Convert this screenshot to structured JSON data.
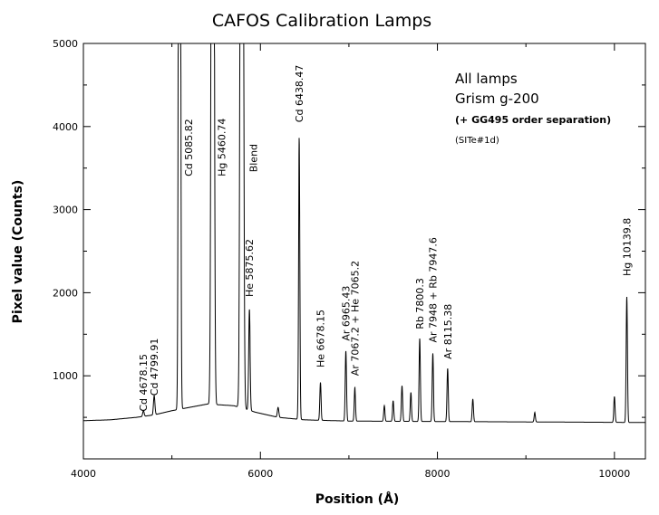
{
  "chart_data": {
    "type": "line",
    "title": "CAFOS Calibration Lamps",
    "xlabel": "Position (Å)",
    "ylabel": "Pixel value (Counts)",
    "xlim": [
      4000,
      10350
    ],
    "ylim": [
      0,
      5000
    ],
    "x_ticks": [
      4000,
      6000,
      8000,
      10000
    ],
    "x_tick_labels": [
      "4000",
      "6000",
      "8000",
      "10000"
    ],
    "y_ticks": [
      1000,
      2000,
      3000,
      4000,
      5000
    ],
    "y_tick_labels": [
      "1000",
      "2000",
      "3000",
      "4000",
      "5000"
    ],
    "grid": false,
    "legend": "none",
    "continuum": [
      [
        4000,
        460
      ],
      [
        4300,
        470
      ],
      [
        4600,
        500
      ],
      [
        4800,
        530
      ],
      [
        5000,
        580
      ],
      [
        5200,
        620
      ],
      [
        5400,
        660
      ],
      [
        5700,
        640
      ],
      [
        5950,
        560
      ],
      [
        6200,
        500
      ],
      [
        6500,
        470
      ],
      [
        7000,
        455
      ],
      [
        8000,
        450
      ],
      [
        9000,
        445
      ],
      [
        10000,
        440
      ],
      [
        10350,
        438
      ]
    ],
    "peaks": [
      {
        "x": 4678.15,
        "y": 580,
        "w": 8
      },
      {
        "x": 4799.91,
        "y": 760,
        "w": 8
      },
      {
        "x": 5085.82,
        "y": 5000,
        "w": 9
      },
      {
        "x": 5460.74,
        "y": 5000,
        "w": 12
      },
      {
        "x": 5790,
        "y": 5000,
        "w": 13
      },
      {
        "x": 5875.62,
        "y": 1800,
        "w": 8
      },
      {
        "x": 6200,
        "y": 620,
        "w": 8
      },
      {
        "x": 6438.47,
        "y": 3870,
        "w": 7
      },
      {
        "x": 6678.15,
        "y": 920,
        "w": 7
      },
      {
        "x": 6965.43,
        "y": 1300,
        "w": 7
      },
      {
        "x": 7067.2,
        "y": 860,
        "w": 7
      },
      {
        "x": 7400,
        "y": 640,
        "w": 7
      },
      {
        "x": 7500,
        "y": 700,
        "w": 7
      },
      {
        "x": 7600,
        "y": 880,
        "w": 7
      },
      {
        "x": 7700,
        "y": 800,
        "w": 7
      },
      {
        "x": 7800.3,
        "y": 1450,
        "w": 7
      },
      {
        "x": 7948,
        "y": 1270,
        "w": 7
      },
      {
        "x": 8115.38,
        "y": 1090,
        "w": 7
      },
      {
        "x": 8400,
        "y": 720,
        "w": 7
      },
      {
        "x": 9100,
        "y": 560,
        "w": 7
      },
      {
        "x": 10000,
        "y": 750,
        "w": 7
      },
      {
        "x": 10139.8,
        "y": 1950,
        "w": 7
      }
    ],
    "annotations": [
      {
        "text": "Cd 4678.15",
        "x": 4678.15,
        "y": 570
      },
      {
        "text": "Cd 4799.91",
        "x": 4799.91,
        "y": 760
      },
      {
        "text": "Cd 5085.82",
        "x": 5085.82,
        "y": 3400
      },
      {
        "text": "Hg 5460.74",
        "x": 5460.74,
        "y": 3400
      },
      {
        "text": "Blend",
        "x": 5875.62,
        "y": 3450
      },
      {
        "text": "He 5875.62",
        "x": 5875.62,
        "y": 1950
      },
      {
        "text": "Cd 6438.47",
        "x": 6438.47,
        "y": 4050
      },
      {
        "text": "He 6678.15",
        "x": 6678.15,
        "y": 1100
      },
      {
        "text": "Ar 6965.43",
        "x": 6965.43,
        "y": 1420
      },
      {
        "text": "Ar 7067.2 + He 7065.2",
        "x": 7067.2,
        "y": 1000
      },
      {
        "text": "Rb 7800.3",
        "x": 7800.3,
        "y": 1560
      },
      {
        "text": "Ar 7948 + Rb 7947.6",
        "x": 7948,
        "y": 1400
      },
      {
        "text": "Ar 8115.38",
        "x": 8115.38,
        "y": 1200
      },
      {
        "text": "Hg 10139.8",
        "x": 10139.8,
        "y": 2200
      }
    ],
    "notes": {
      "line1": "All lamps",
      "line2": "Grism g-200",
      "line3": "(+ GG495 order separation)",
      "line4": "(SITe#1d)"
    },
    "line_color": "#000000"
  }
}
